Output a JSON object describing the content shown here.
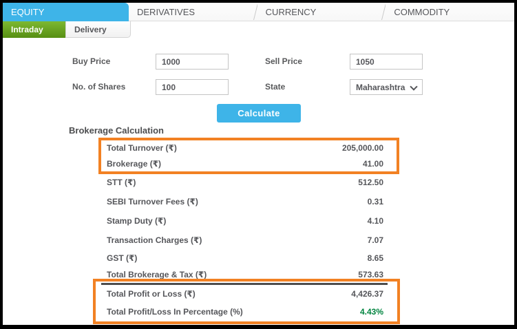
{
  "tabs": {
    "items": [
      "EQUITY",
      "DERIVATIVES",
      "CURRENCY",
      "COMMODITY"
    ],
    "active": "EQUITY"
  },
  "subtabs": {
    "items": [
      "Intraday",
      "Delivery"
    ],
    "active": "Intraday"
  },
  "form": {
    "buy_price": {
      "label": "Buy Price",
      "value": "1000"
    },
    "sell_price": {
      "label": "Sell Price",
      "value": "1050"
    },
    "shares": {
      "label": "No. of Shares",
      "value": "100"
    },
    "state": {
      "label": "State",
      "value": "Maharashtra"
    },
    "calculate_label": "Calculate"
  },
  "results": {
    "heading": "Brokerage Calculation",
    "highlight_rows": [
      {
        "label": "Total Turnover (₹)",
        "value": "205,000.00"
      },
      {
        "label": "Brokerage (₹)",
        "value": "41.00"
      }
    ],
    "rows": [
      {
        "label": "STT (₹)",
        "value": "512.50"
      },
      {
        "label": "SEBI Turnover Fees (₹)",
        "value": "0.31"
      },
      {
        "label": "Stamp Duty (₹)",
        "value": "4.10"
      },
      {
        "label": "Transaction Charges (₹)",
        "value": "7.07"
      },
      {
        "label": "GST (₹)",
        "value": "8.65"
      },
      {
        "label": "Total Brokerage & Tax (₹)",
        "value": "573.63"
      }
    ],
    "summary_rows": [
      {
        "label": "Total Profit or Loss (₹)",
        "value": "4,426.37"
      },
      {
        "label": "Total Profit/Loss In Percentage (%)",
        "value": "4.43%"
      }
    ]
  },
  "colors": {
    "active_tab_blue": "#3eb4e8",
    "active_subtab_green": "#6aa81f",
    "highlight_border_orange": "#f28123",
    "profit_text_green": "#00843f",
    "separator_dark_gray": "#4d4d4d"
  }
}
